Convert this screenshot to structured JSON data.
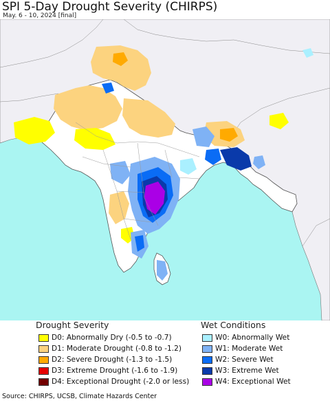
{
  "header": {
    "title": "SPI 5-Day Drought Severity (CHIRPS)",
    "subtitle": "May. 6 - 10, 2024 [final]"
  },
  "colors": {
    "land": "#ffffff",
    "neighbor_land": "#f0eff4",
    "ocean": "#aaf5f2",
    "border": "#555555"
  },
  "legend": {
    "drought": {
      "title": "Drought Severity",
      "items": [
        {
          "label": "D0: Abnormally Dry (-0.5 to -0.7)",
          "color": "#ffff00"
        },
        {
          "label": "D1: Moderate Drought (-0.8 to -1.2)",
          "color": "#fcd37f"
        },
        {
          "label": "D2: Severe Drought (-1.3 to -1.5)",
          "color": "#ffaa00"
        },
        {
          "label": "D3: Extreme Drought (-1.6 to -1.9)",
          "color": "#e60000"
        },
        {
          "label": "D4: Exceptional Drought (-2.0 or less)",
          "color": "#730000"
        }
      ]
    },
    "wet": {
      "title": "Wet Conditions",
      "items": [
        {
          "label": "W0: Abnormally Wet",
          "color": "#aaf0ff"
        },
        {
          "label": "W1: Moderate Wet",
          "color": "#7fb2f5"
        },
        {
          "label": "W2: Severe Wet",
          "color": "#0a6cf5"
        },
        {
          "label": "W3: Extreme Wet",
          "color": "#0a3aaa"
        },
        {
          "label": "W4: Exceptional Wet",
          "color": "#aa00e6"
        }
      ]
    }
  },
  "footer": {
    "source": "Source: CHIRPS, UCSB, Climate Hazards Center"
  }
}
